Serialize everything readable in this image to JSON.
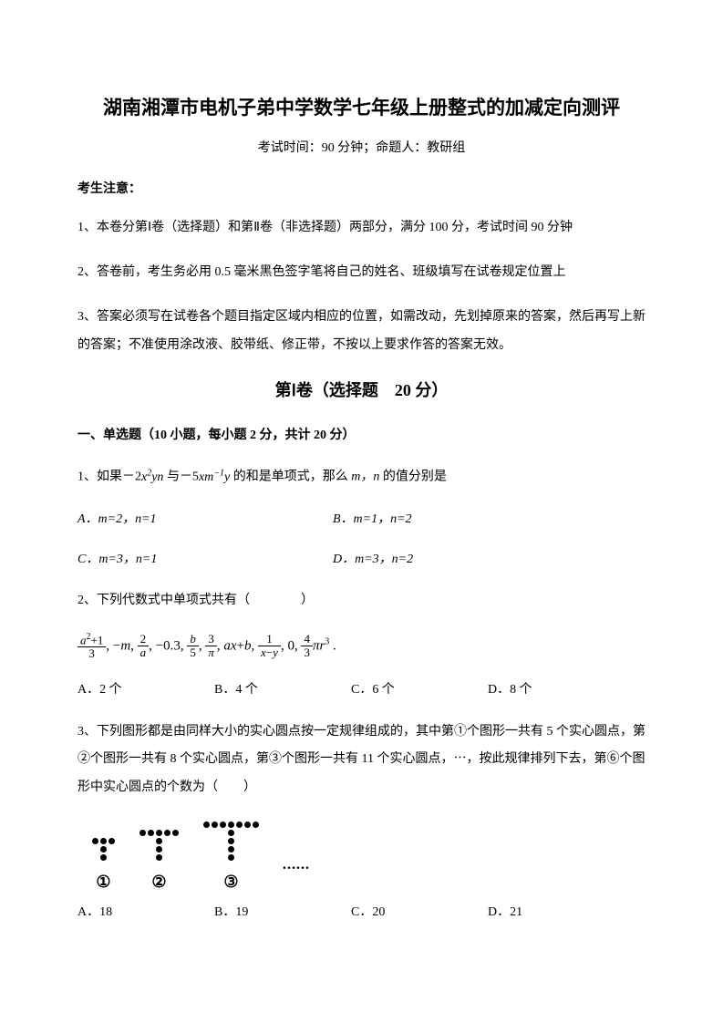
{
  "title": "湖南湘潭市电机子弟中学数学七年级上册整式的加减定向测评",
  "subtitle": "考试时间：90 分钟；命题人：教研组",
  "notice_header": "考生注意：",
  "notices": [
    "1、本卷分第Ⅰ卷（选择题）和第Ⅱ卷（非选择题）两部分，满分 100 分，考试时间 90 分钟",
    "2、答卷前，考生务必用 0.5 毫米黑色签字笔将自己的姓名、班级填写在试卷规定位置上",
    "3、答案必须写在试卷各个题目指定区域内相应的位置，如需改动，先划掉原来的答案，然后再写上新的答案；不准使用涂改液、胶带纸、修正带，不按以上要求作答的答案无效。"
  ],
  "section_title": "第Ⅰ卷（选择题　20 分）",
  "subsection_title": "一、单选题（10 小题，每小题 2 分，共计 20 分）",
  "q1": {
    "text_start": "1、如果－2",
    "text_mid": " 与－5",
    "text_end": " 的和是单项式，那么 ",
    "text_final": " 的值分别是",
    "optA": "A．m=2，n=1",
    "optB": "B．m=1，n=2",
    "optC": "C．m=3，n=1",
    "optD": "D．m=3，n=2"
  },
  "q2": {
    "text": "2、下列代数式中单项式共有（　　　　）",
    "optA": "A．2 个",
    "optB": "B．4 个",
    "optC": "C．6 个",
    "optD": "D．8 个"
  },
  "q3": {
    "text": "3、下列图形都是由同样大小的实心圆点按一定规律组成的，其中第①个图形一共有 5 个实心圆点，第②个图形一共有 8 个实心圆点，第③个图形一共有 11 个实心圆点，⋯，按此规律排列下去，第⑥个图形中实心圆点的个数为（　　）",
    "fig_labels": [
      "①",
      "②",
      "③"
    ],
    "ellipsis": "......",
    "optA": "A．18",
    "optB": "B．19",
    "optC": "C．20",
    "optD": "D．21"
  },
  "formula": {
    "items": [
      {
        "type": "frac",
        "num": "a²+1",
        "den": "3"
      },
      {
        "type": "text",
        "val": ", −m, "
      },
      {
        "type": "frac",
        "num": "2",
        "den": "a"
      },
      {
        "type": "text",
        "val": ", −0.3, "
      },
      {
        "type": "frac",
        "num": "b",
        "den": "5"
      },
      {
        "type": "text",
        "val": ", "
      },
      {
        "type": "frac",
        "num": "3",
        "den": "π"
      },
      {
        "type": "text",
        "val": ", ax+b, "
      },
      {
        "type": "frac",
        "num": "1",
        "den": "x−y"
      },
      {
        "type": "text",
        "val": ", 0, "
      },
      {
        "type": "frac",
        "num": "4",
        "den": "3"
      },
      {
        "type": "text",
        "val": "πr³ ."
      }
    ]
  },
  "colors": {
    "text": "#000000",
    "background": "#ffffff"
  }
}
